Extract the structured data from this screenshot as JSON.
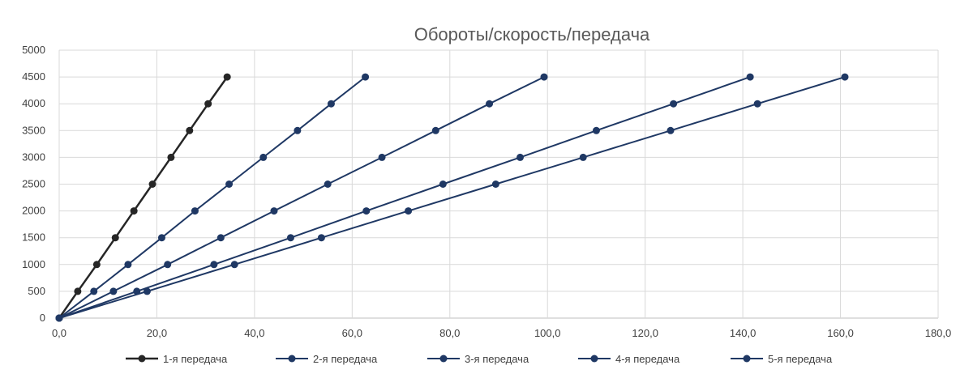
{
  "chart_data": {
    "type": "line",
    "title": "Обороты/скорость/передача",
    "xlim": [
      0,
      180
    ],
    "ylim": [
      0,
      5000
    ],
    "x_ticks": [
      0,
      20,
      40,
      60,
      80,
      100,
      120,
      140,
      160,
      180
    ],
    "x_tick_labels": [
      "0,0",
      "20,0",
      "40,0",
      "60,0",
      "80,0",
      "100,0",
      "120,0",
      "140,0",
      "160,0",
      "180,0"
    ],
    "y_ticks": [
      0,
      500,
      1000,
      1500,
      2000,
      2500,
      3000,
      3500,
      4000,
      4500,
      5000
    ],
    "y_tick_labels": [
      "0",
      "500",
      "1000",
      "1500",
      "2000",
      "2500",
      "3000",
      "3500",
      "4000",
      "4500",
      "5000"
    ],
    "grid": true,
    "legend_position": "bottom",
    "colors": {
      "series_1": "#262626",
      "series_other": "#1f3864"
    },
    "series": [
      {
        "name": "1-я передача",
        "color": "#262626",
        "points": [
          [
            0,
            0
          ],
          [
            3.8,
            500
          ],
          [
            7.7,
            1000
          ],
          [
            11.5,
            1500
          ],
          [
            15.3,
            2000
          ],
          [
            19.1,
            2500
          ],
          [
            22.9,
            3000
          ],
          [
            26.7,
            3500
          ],
          [
            30.5,
            4000
          ],
          [
            34.4,
            4500
          ]
        ]
      },
      {
        "name": "2-я передача",
        "color": "#1f3864",
        "points": [
          [
            0,
            0
          ],
          [
            7.1,
            500
          ],
          [
            14.1,
            1000
          ],
          [
            21.0,
            1500
          ],
          [
            27.8,
            2000
          ],
          [
            34.8,
            2500
          ],
          [
            41.8,
            3000
          ],
          [
            48.8,
            3500
          ],
          [
            55.7,
            4000
          ],
          [
            62.7,
            4500
          ]
        ]
      },
      {
        "name": "3-я передача",
        "color": "#1f3864",
        "points": [
          [
            0,
            0
          ],
          [
            11.1,
            500
          ],
          [
            22.2,
            1000
          ],
          [
            33.1,
            1500
          ],
          [
            44.0,
            2000
          ],
          [
            55.0,
            2500
          ],
          [
            66.1,
            3000
          ],
          [
            77.1,
            3500
          ],
          [
            88.1,
            4000
          ],
          [
            99.3,
            4500
          ]
        ]
      },
      {
        "name": "4-я передача",
        "color": "#1f3864",
        "points": [
          [
            0,
            0
          ],
          [
            15.9,
            500
          ],
          [
            31.7,
            1000
          ],
          [
            47.4,
            1500
          ],
          [
            62.9,
            2000
          ],
          [
            78.6,
            2500
          ],
          [
            94.4,
            3000
          ],
          [
            110.0,
            3500
          ],
          [
            125.8,
            4000
          ],
          [
            141.5,
            4500
          ]
        ]
      },
      {
        "name": "5-я передача",
        "color": "#1f3864",
        "points": [
          [
            0,
            0
          ],
          [
            18.0,
            500
          ],
          [
            35.9,
            1000
          ],
          [
            53.7,
            1500
          ],
          [
            71.5,
            2000
          ],
          [
            89.4,
            2500
          ],
          [
            107.3,
            3000
          ],
          [
            125.2,
            3500
          ],
          [
            143.0,
            4000
          ],
          [
            160.9,
            4500
          ]
        ]
      }
    ]
  }
}
